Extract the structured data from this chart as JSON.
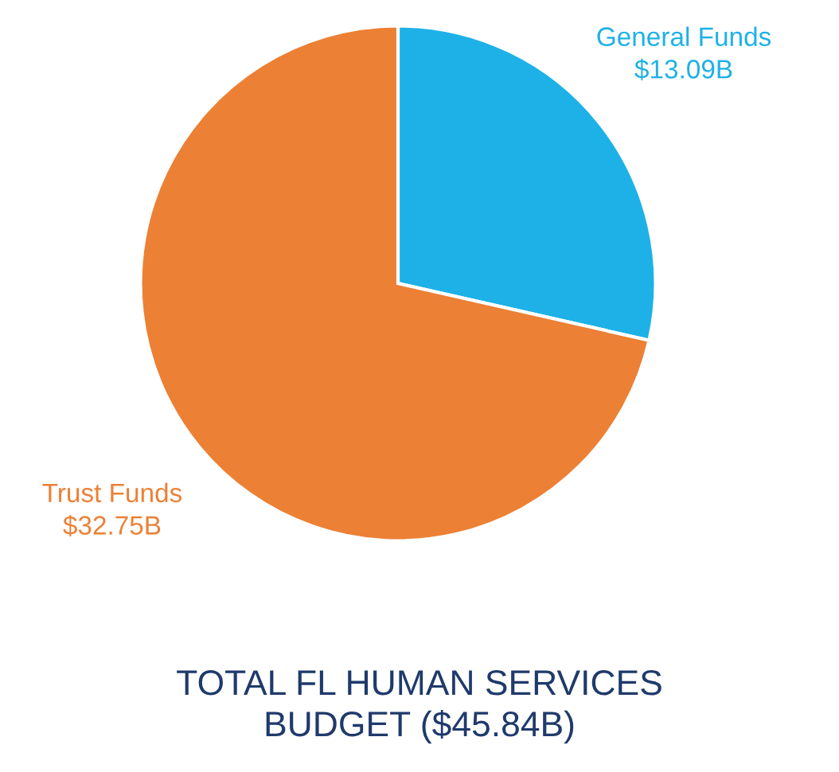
{
  "chart_data": {
    "type": "pie",
    "title": "TOTAL FL HUMAN SERVICES\nBUDGET ($45.84B)",
    "categories": [
      "General Funds",
      "Trust Funds"
    ],
    "values": [
      13.09,
      32.75
    ],
    "value_labels": [
      "$13.09B",
      "$32.75B"
    ],
    "colors": [
      "#1eb1e7",
      "#ec8035"
    ],
    "legend": false
  }
}
